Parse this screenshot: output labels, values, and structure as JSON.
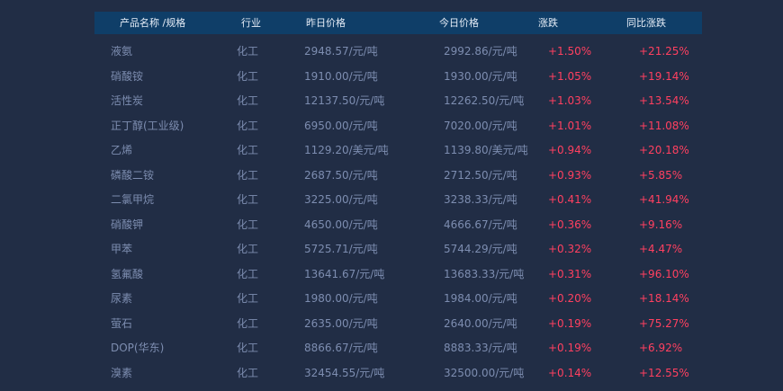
{
  "colors": {
    "header_bg": "#0f3e68",
    "background": "#212d45",
    "up": "#ff4060",
    "text": "#7d8db0"
  },
  "headers": [
    "产品名称 /规格",
    "行业",
    "昨日价格",
    "今日价格",
    "涨跌",
    "同比涨跌"
  ],
  "rows": [
    [
      "液氨",
      "化工",
      "2948.57/元/吨",
      "2992.86/元/吨",
      "+1.50%",
      "+21.25%"
    ],
    [
      "硝酸铵",
      "化工",
      "1910.00/元/吨",
      "1930.00/元/吨",
      "+1.05%",
      "+19.14%"
    ],
    [
      "活性炭",
      "化工",
      "12137.50/元/吨",
      "12262.50/元/吨",
      "+1.03%",
      "+13.54%"
    ],
    [
      "正丁醇(工业级)",
      "化工",
      "6950.00/元/吨",
      "7020.00/元/吨",
      "+1.01%",
      "+11.08%"
    ],
    [
      "乙烯",
      "化工",
      "1129.20/美元/吨",
      "1139.80/美元/吨",
      "+0.94%",
      "+20.18%"
    ],
    [
      "磷酸二铵",
      "化工",
      "2687.50/元/吨",
      "2712.50/元/吨",
      "+0.93%",
      "+5.85%"
    ],
    [
      "二氯甲烷",
      "化工",
      "3225.00/元/吨",
      "3238.33/元/吨",
      "+0.41%",
      "+41.94%"
    ],
    [
      "硝酸钾",
      "化工",
      "4650.00/元/吨",
      "4666.67/元/吨",
      "+0.36%",
      "+9.16%"
    ],
    [
      "甲苯",
      "化工",
      "5725.71/元/吨",
      "5744.29/元/吨",
      "+0.32%",
      "+4.47%"
    ],
    [
      "氢氟酸",
      "化工",
      "13641.67/元/吨",
      "13683.33/元/吨",
      "+0.31%",
      "+96.10%"
    ],
    [
      "尿素",
      "化工",
      "1980.00/元/吨",
      "1984.00/元/吨",
      "+0.20%",
      "+18.14%"
    ],
    [
      "萤石",
      "化工",
      "2635.00/元/吨",
      "2640.00/元/吨",
      "+0.19%",
      "+75.27%"
    ],
    [
      "DOP(华东)",
      "化工",
      "8866.67/元/吨",
      "8883.33/元/吨",
      "+0.19%",
      "+6.92%"
    ],
    [
      "溴素",
      "化工",
      "32454.55/元/吨",
      "32500.00/元/吨",
      "+0.14%",
      "+12.55%"
    ]
  ]
}
